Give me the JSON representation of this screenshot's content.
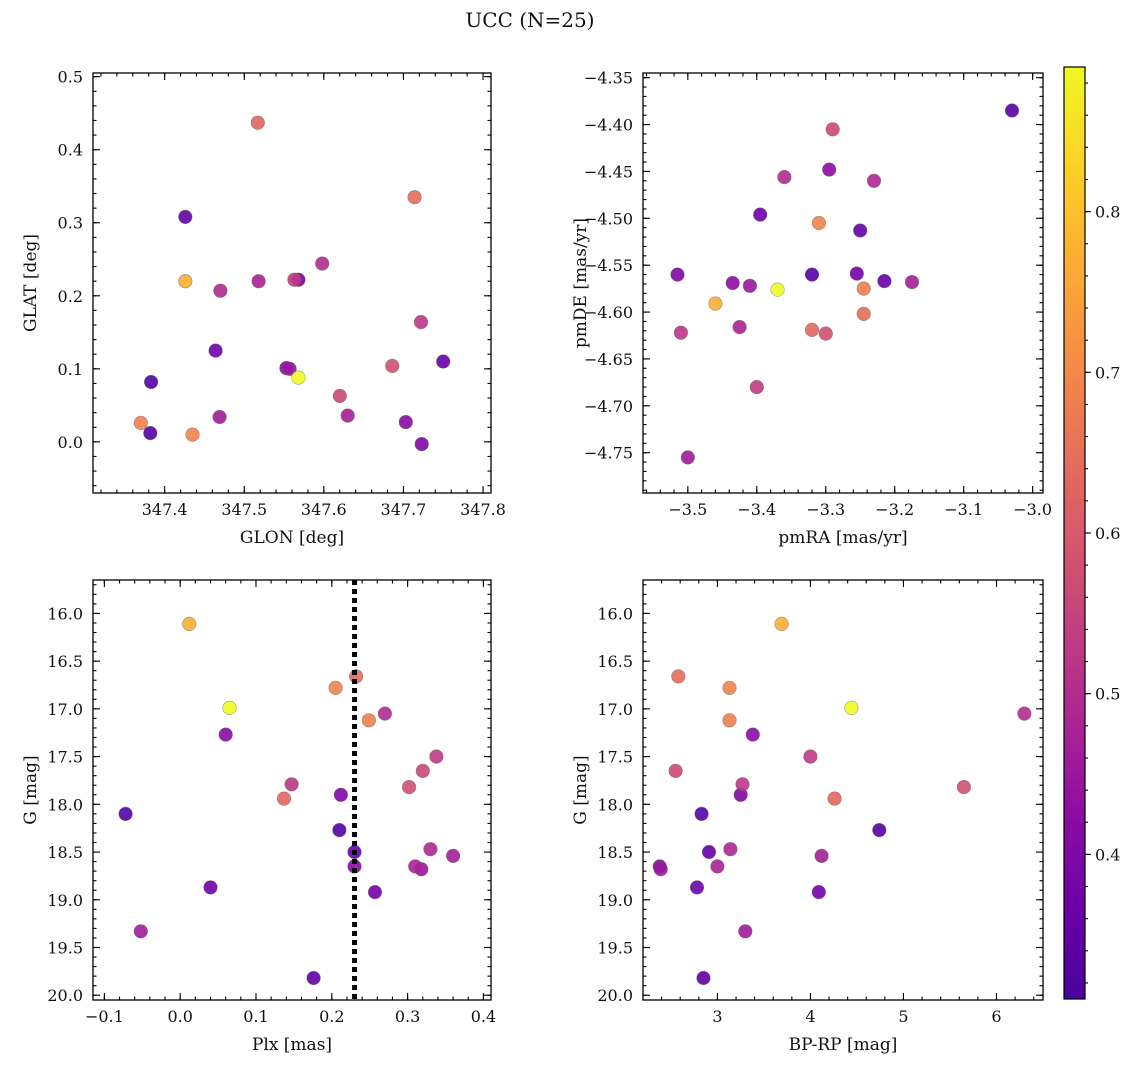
{
  "figure": {
    "title": "UCC (N=25)"
  },
  "chart_data": [
    {
      "id": "glon-glat",
      "type": "scatter",
      "xlabel": "GLON [deg]",
      "ylabel": "GLAT [deg]",
      "xlim": [
        347.31,
        347.81
      ],
      "ylim": [
        -0.07,
        0.505
      ],
      "xticks": [
        347.4,
        347.5,
        347.6,
        347.7,
        347.8
      ],
      "xticklabels": [
        "347.4",
        "347.5",
        "347.6",
        "347.7",
        "347.8"
      ],
      "yticks": [
        0.0,
        0.1,
        0.2,
        0.3,
        0.4,
        0.5
      ],
      "yticklabels": [
        "0.0",
        "0.1",
        "0.2",
        "0.3",
        "0.4",
        "0.5"
      ],
      "invert_y": false
    },
    {
      "id": "pm",
      "type": "scatter",
      "xlabel": "pmRA [mas/yr]",
      "ylabel": "pmDE [mas/yr]",
      "xlim": [
        -3.565,
        -2.985
      ],
      "ylim": [
        -4.793,
        -4.345
      ],
      "xticks": [
        -3.5,
        -3.4,
        -3.3,
        -3.2,
        -3.1,
        -3.0
      ],
      "xticklabels": [
        "−3.5",
        "−3.4",
        "−3.3",
        "−3.2",
        "−3.1",
        "−3.0"
      ],
      "yticks": [
        -4.75,
        -4.7,
        -4.65,
        -4.6,
        -4.55,
        -4.5,
        -4.45,
        -4.4,
        -4.35
      ],
      "yticklabels": [
        "−4.75",
        "−4.70",
        "−4.65",
        "−4.60",
        "−4.55",
        "−4.50",
        "−4.45",
        "−4.40",
        "−4.35"
      ],
      "invert_y": false
    },
    {
      "id": "plx-g",
      "type": "scatter",
      "xlabel": "Plx [mas]",
      "ylabel": "G [mag]",
      "xlim": [
        -0.115,
        0.41
      ],
      "ylim": [
        20.05,
        15.65
      ],
      "xticks": [
        -0.1,
        0.0,
        0.1,
        0.2,
        0.3,
        0.4
      ],
      "xticklabels": [
        "−0.1",
        "0.0",
        "0.1",
        "0.2",
        "0.3",
        "0.4"
      ],
      "yticks": [
        16.0,
        16.5,
        17.0,
        17.5,
        18.0,
        18.5,
        19.0,
        19.5,
        20.0
      ],
      "yticklabels": [
        "16.0",
        "16.5",
        "17.0",
        "17.5",
        "18.0",
        "18.5",
        "19.0",
        "19.5",
        "20.0"
      ],
      "invert_y": true,
      "vline": {
        "x": 0.23,
        "style": "dotted",
        "color": "#000000"
      }
    },
    {
      "id": "bprp-g",
      "type": "scatter",
      "xlabel": "BP-RP [mag]",
      "ylabel": "G [mag]",
      "xlim": [
        2.2,
        6.5
      ],
      "ylim": [
        20.05,
        15.65
      ],
      "xticks": [
        3,
        4,
        5,
        6
      ],
      "xticklabels": [
        "3",
        "4",
        "5",
        "6"
      ],
      "yticks": [
        16.0,
        16.5,
        17.0,
        17.5,
        18.0,
        18.5,
        19.0,
        19.5,
        20.0
      ],
      "yticklabels": [
        "16.0",
        "16.5",
        "17.0",
        "17.5",
        "18.0",
        "18.5",
        "19.0",
        "19.5",
        "20.0"
      ],
      "invert_y": true
    }
  ],
  "members": {
    "fields": [
      "glon",
      "glat",
      "pmra",
      "pmde",
      "plx",
      "g",
      "bprp",
      "prob"
    ],
    "rows": [
      [
        347.568,
        0.088,
        -3.37,
        -4.576,
        0.065,
        16.99,
        4.44,
        0.89
      ],
      [
        347.426,
        0.22,
        -3.46,
        -4.591,
        0.012,
        16.11,
        3.69,
        0.77
      ],
      [
        347.435,
        0.01,
        -3.31,
        -4.505,
        0.205,
        16.78,
        3.13,
        0.69
      ],
      [
        347.37,
        0.026,
        -3.245,
        -4.575,
        0.249,
        17.12,
        3.13,
        0.68
      ],
      [
        347.714,
        0.335,
        -3.245,
        -4.602,
        0.232,
        16.66,
        2.58,
        0.64
      ],
      [
        347.517,
        0.437,
        -3.32,
        -4.619,
        0.137,
        17.94,
        4.26,
        0.63
      ],
      [
        347.686,
        0.104,
        -3.3,
        -4.623,
        0.302,
        17.82,
        5.65,
        0.58
      ],
      [
        347.62,
        0.063,
        -3.29,
        -4.405,
        0.32,
        17.65,
        2.55,
        0.56
      ],
      [
        347.563,
        0.222,
        -3.4,
        -4.68,
        0.338,
        17.5,
        4.0,
        0.53
      ],
      [
        347.722,
        0.164,
        -3.51,
        -4.622,
        0.147,
        17.79,
        3.27,
        0.52
      ],
      [
        347.598,
        0.244,
        -3.36,
        -4.456,
        0.27,
        17.05,
        6.3,
        0.5
      ],
      [
        347.47,
        0.207,
        -3.23,
        -4.46,
        0.33,
        18.47,
        3.14,
        0.49
      ],
      [
        347.518,
        0.22,
        -3.425,
        -4.616,
        0.31,
        18.65,
        3.0,
        0.48
      ],
      [
        347.63,
        0.036,
        -3.175,
        -4.568,
        0.36,
        18.54,
        4.12,
        0.47
      ],
      [
        347.469,
        0.034,
        -3.5,
        -4.755,
        -0.052,
        19.33,
        3.3,
        0.46
      ],
      [
        347.557,
        0.1,
        -3.41,
        -4.572,
        0.318,
        18.68,
        2.39,
        0.45
      ],
      [
        347.553,
        0.101,
        -3.295,
        -4.448,
        0.06,
        17.27,
        3.38,
        0.42
      ],
      [
        347.703,
        0.027,
        -3.435,
        -4.569,
        0.23,
        18.65,
        2.38,
        0.42
      ],
      [
        347.723,
        -0.003,
        -3.515,
        -4.56,
        0.212,
        17.9,
        3.25,
        0.4
      ],
      [
        347.568,
        0.222,
        -3.255,
        -4.559,
        0.257,
        18.92,
        4.09,
        0.38
      ],
      [
        347.464,
        0.125,
        -3.395,
        -4.496,
        0.04,
        18.87,
        2.78,
        0.37
      ],
      [
        347.75,
        0.11,
        -3.215,
        -4.567,
        0.23,
        18.5,
        2.91,
        0.36
      ],
      [
        347.426,
        0.308,
        -3.25,
        -4.513,
        0.176,
        19.82,
        2.85,
        0.35
      ],
      [
        347.383,
        0.082,
        -3.32,
        -4.56,
        -0.072,
        18.1,
        2.83,
        0.33
      ],
      [
        347.382,
        0.012,
        -3.03,
        -4.385,
        0.21,
        18.27,
        4.74,
        0.33
      ]
    ]
  },
  "colorbar": {
    "range": [
      0.31,
      0.89
    ],
    "ticks": [
      0.4,
      0.5,
      0.6,
      0.7,
      0.8
    ],
    "ticklabels": [
      "0.4",
      "0.5",
      "0.6",
      "0.7",
      "0.8"
    ],
    "colormap": "plasma"
  }
}
